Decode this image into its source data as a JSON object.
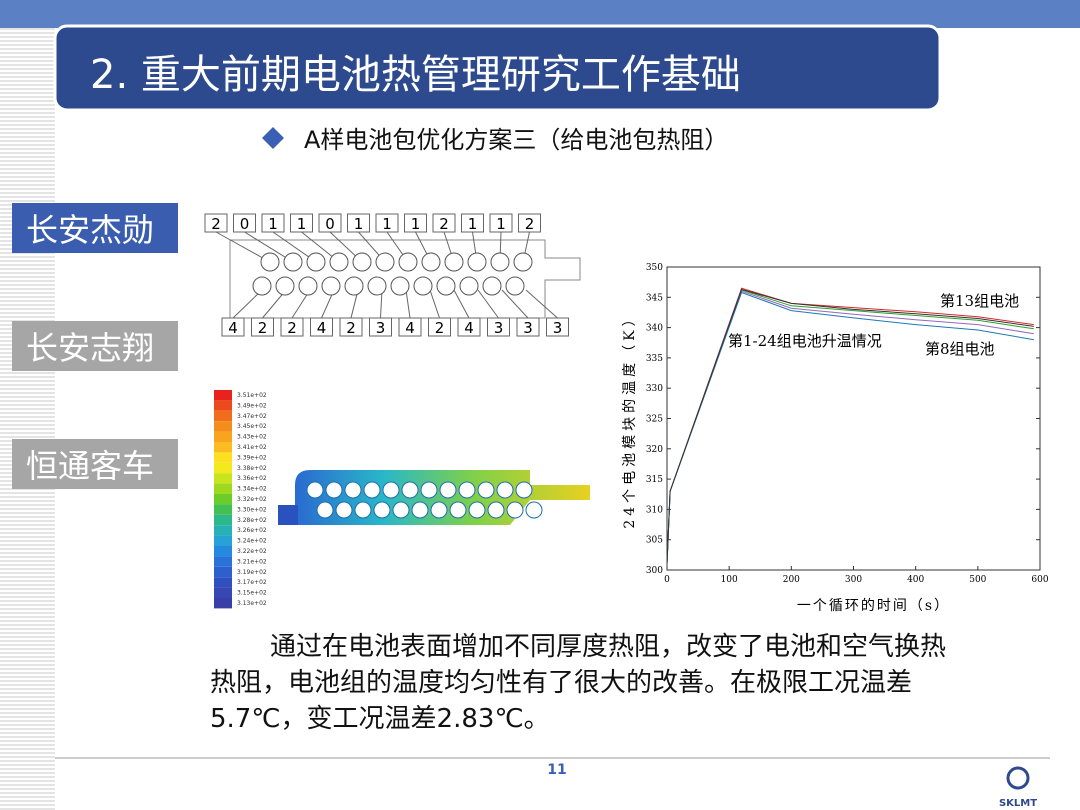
{
  "header": {
    "title": "2. 重大前期电池热管理研究工作基础",
    "subtitle": "A样电池包优化方案三（给电池包热阻）"
  },
  "sidebar": [
    "长安杰勋",
    "长安志翔",
    "恒通客车"
  ],
  "diagram": {
    "top_labels": [
      "2",
      "0",
      "1",
      "1",
      "0",
      "1",
      "1",
      "1",
      "2",
      "1",
      "1",
      "2"
    ],
    "bottom_labels": [
      "4",
      "2",
      "2",
      "4",
      "2",
      "3",
      "4",
      "2",
      "4",
      "3",
      "3",
      "3"
    ]
  },
  "contour_scale": [
    "3.51e+02",
    "3.49e+02",
    "3.47e+02",
    "3.45e+02",
    "3.43e+02",
    "3.41e+02",
    "3.39e+02",
    "3.38e+02",
    "3.36e+02",
    "3.34e+02",
    "3.32e+02",
    "3.30e+02",
    "3.28e+02",
    "3.26e+02",
    "3.24e+02",
    "3.22e+02",
    "3.21e+02",
    "3.19e+02",
    "3.17e+02",
    "3.15e+02",
    "3.13e+02"
  ],
  "chart": {
    "y_label": "24个电池模块的温度（K）",
    "x_label": "一个循环的时间（s）",
    "annotations": [
      "第13组电池",
      "第1-24组电池升温情况",
      "第8组电池"
    ],
    "xlim": [
      0,
      600
    ],
    "ylim": [
      300,
      350
    ],
    "xticks": [
      0,
      100,
      200,
      300,
      400,
      500,
      600
    ],
    "yticks": [
      300,
      305,
      310,
      315,
      320,
      325,
      330,
      335,
      340,
      345,
      350
    ],
    "series": [
      {
        "color": "#d62728",
        "x": [
          0,
          5,
          120,
          200,
          300,
          400,
          500,
          590
        ],
        "values": [
          301,
          313,
          346.5,
          344,
          343.3,
          342.6,
          341.8,
          340.5
        ]
      },
      {
        "color": "#2ca02c",
        "x": [
          0,
          5,
          120,
          200,
          300,
          400,
          500,
          590
        ],
        "values": [
          301,
          313,
          346.2,
          343.6,
          342.8,
          342,
          341.2,
          339.8
        ]
      },
      {
        "color": "#9467bd",
        "x": [
          0,
          5,
          120,
          200,
          300,
          400,
          500,
          590
        ],
        "values": [
          301,
          313,
          346,
          343.2,
          342.2,
          341.3,
          340.5,
          339
        ]
      },
      {
        "color": "#1f77b4",
        "x": [
          0,
          5,
          120,
          200,
          300,
          400,
          500,
          590
        ],
        "values": [
          301,
          313,
          345.8,
          342.8,
          341.6,
          340.5,
          339.6,
          338
        ]
      },
      {
        "color": "#333333",
        "x": [
          0,
          5,
          120,
          200,
          300,
          400,
          500,
          590
        ],
        "values": [
          301,
          313,
          346.3,
          344,
          343,
          342.3,
          341.5,
          340.2
        ]
      }
    ]
  },
  "body": [
    "通过在电池表面增加不同厚度热阻，改变了电池和空气换热",
    "热阻，电池组的温度均匀性有了很大的改善。在极限工况温差",
    "5.7℃，变工况温差2.83℃。"
  ],
  "footer": {
    "page": "11",
    "logo": "SKLMT"
  }
}
